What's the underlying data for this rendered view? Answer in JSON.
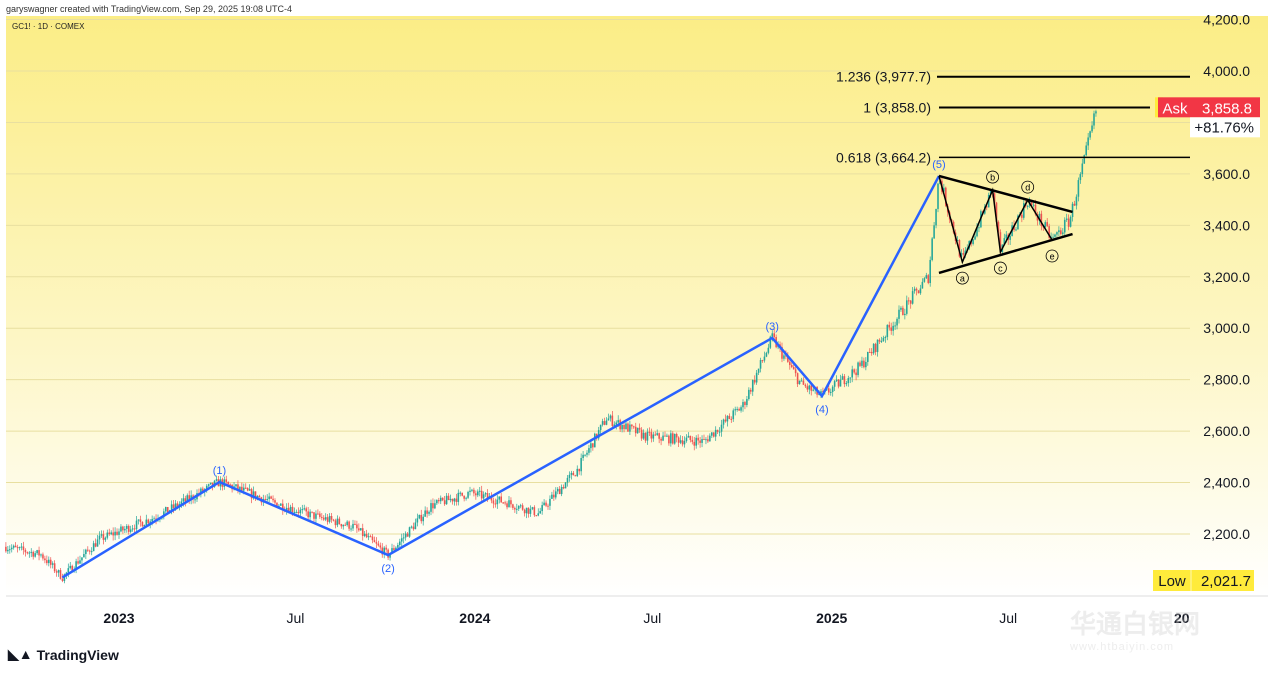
{
  "header": {
    "credit": "garyswagner created with TradingView.com, Sep 29, 2025 19:08 UTC-4",
    "symbol": "GC1! · 1D · COMEX"
  },
  "footer": {
    "brand": "TradingView",
    "watermark_cn": "华通白银网",
    "watermark_url": "www.htbaiyin.com"
  },
  "colors": {
    "wave": "#2962ff",
    "candle_up": "#26a69a",
    "candle_down": "#ef5350",
    "ask": "#f23645",
    "low": "#ffeb3b"
  },
  "chart_data": {
    "type": "candlestick",
    "symbol": "GC1!",
    "interval": "1D",
    "exchange": "COMEX",
    "y_ticks": [
      2200,
      2400,
      2600,
      2800,
      3000,
      3200,
      3400,
      3600,
      3800,
      4000,
      4200
    ],
    "y_tick_labels": [
      "2,200.0",
      "2,400.0",
      "2,600.0",
      "2,800.0",
      "3,000.0",
      "3,200.0",
      "3,400.0",
      "3,600.0",
      "",
      "4,000.0",
      "4,200.0"
    ],
    "ylim": [
      1960,
      4240
    ],
    "x_unit": "days since 2023-01-01",
    "xlim": [
      -116,
      1097
    ],
    "x_ticks": [
      {
        "d": 0,
        "label": "2023"
      },
      {
        "d": 181,
        "label": "Jul"
      },
      {
        "d": 365,
        "label": "2024"
      },
      {
        "d": 547,
        "label": "Jul"
      },
      {
        "d": 731,
        "label": "2025"
      },
      {
        "d": 912,
        "label": "Jul"
      },
      {
        "d": 1090,
        "label": "20"
      }
    ],
    "price_path": [
      [
        -116,
        2150
      ],
      [
        -80,
        2120
      ],
      [
        -58,
        2031
      ],
      [
        -20,
        2180
      ],
      [
        40,
        2270
      ],
      [
        103,
        2402
      ],
      [
        160,
        2320
      ],
      [
        200,
        2270
      ],
      [
        240,
        2230
      ],
      [
        276,
        2118
      ],
      [
        320,
        2310
      ],
      [
        360,
        2360
      ],
      [
        400,
        2320
      ],
      [
        430,
        2280
      ],
      [
        470,
        2450
      ],
      [
        500,
        2650
      ],
      [
        540,
        2580
      ],
      [
        600,
        2560
      ],
      [
        640,
        2700
      ],
      [
        670,
        2962
      ],
      [
        700,
        2780
      ],
      [
        721,
        2736
      ],
      [
        760,
        2850
      ],
      [
        800,
        3050
      ],
      [
        830,
        3200
      ],
      [
        841,
        3592
      ],
      [
        865,
        3257
      ],
      [
        896,
        3537
      ],
      [
        904,
        3296
      ],
      [
        932,
        3498
      ],
      [
        957,
        3343
      ],
      [
        975,
        3420
      ],
      [
        990,
        3650
      ],
      [
        1003,
        3858.8
      ]
    ],
    "elliott_waves": [
      {
        "label": "",
        "d": -58,
        "p": 2031
      },
      {
        "label": "(1)",
        "d": 103,
        "p": 2402
      },
      {
        "label": "(2)",
        "d": 276,
        "p": 2118
      },
      {
        "label": "(3)",
        "d": 670,
        "p": 2962
      },
      {
        "label": "(4)",
        "d": 721,
        "p": 2736
      },
      {
        "label": "(5)",
        "d": 841,
        "p": 3592
      }
    ],
    "triangle_waves": [
      {
        "label": "",
        "d": 841,
        "p": 3592
      },
      {
        "label": "a",
        "d": 865,
        "p": 3257
      },
      {
        "label": "b",
        "d": 896,
        "p": 3537
      },
      {
        "label": "c",
        "d": 904,
        "p": 3296
      },
      {
        "label": "d",
        "d": 932,
        "p": 3498
      },
      {
        "label": "e",
        "d": 957,
        "p": 3343
      }
    ],
    "triangle_lines": [
      [
        [
          841,
          3592
        ],
        [
          978,
          3452
        ]
      ],
      [
        [
          841,
          3215
        ],
        [
          978,
          3366
        ]
      ]
    ],
    "fib_levels": [
      {
        "label": "1.236 (3,977.7)",
        "p": 3977.7
      },
      {
        "label": "1 (3,858.0)",
        "p": 3858.0
      },
      {
        "label": "0.618 (3,664.2)",
        "p": 3664.2
      }
    ],
    "ask": {
      "label": "Ask",
      "value": "3,858.8",
      "p": 3858.8,
      "change": "+81.76%"
    },
    "low": {
      "label": "Low",
      "value": "2,021.7",
      "p": 2021.7
    }
  }
}
